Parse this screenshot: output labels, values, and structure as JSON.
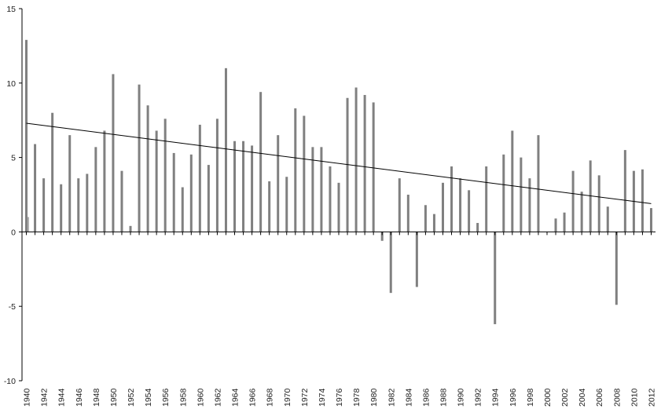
{
  "chart_data": {
    "type": "bar",
    "title": "",
    "xlabel": "",
    "ylabel": "",
    "ylim": [
      -10,
      15
    ],
    "y_ticks": [
      -10,
      -5,
      0,
      5,
      10,
      15
    ],
    "grid": false,
    "legend": "none",
    "bar_color": "#808080",
    "trend_color": "#000000",
    "x_tick_labels": [
      "1940",
      "1942",
      "1944",
      "1946",
      "1948",
      "1950",
      "1952",
      "1954",
      "1956",
      "1958",
      "1960",
      "1962",
      "1964",
      "1966",
      "1968",
      "1970",
      "1972",
      "1974",
      "1976",
      "1978",
      "1980",
      "1982",
      "1984",
      "1986",
      "1988",
      "1990",
      "1992",
      "1994",
      "1996",
      "1998",
      "2000",
      "2002",
      "2004",
      "2006",
      "2008",
      "2010",
      "2012"
    ],
    "years": [
      1940,
      1941,
      1942,
      1943,
      1944,
      1945,
      1946,
      1947,
      1948,
      1949,
      1950,
      1951,
      1952,
      1953,
      1954,
      1955,
      1956,
      1957,
      1958,
      1959,
      1960,
      1961,
      1962,
      1963,
      1964,
      1965,
      1966,
      1967,
      1968,
      1969,
      1970,
      1971,
      1972,
      1973,
      1974,
      1975,
      1976,
      1977,
      1978,
      1979,
      1980,
      1981,
      1982,
      1983,
      1984,
      1985,
      1986,
      1987,
      1988,
      1989,
      1990,
      1991,
      1992,
      1993,
      1994,
      1995,
      1996,
      1997,
      1998,
      1999,
      2000,
      2001,
      2002,
      2003,
      2004,
      2005,
      2006,
      2007,
      2008,
      2009,
      2010,
      2011,
      2012
    ],
    "values": [
      12.9,
      5.9,
      3.6,
      8.0,
      3.2,
      6.5,
      3.6,
      3.9,
      5.7,
      6.8,
      10.6,
      4.1,
      0.4,
      9.9,
      8.5,
      6.8,
      7.6,
      5.3,
      3.0,
      5.2,
      7.2,
      4.5,
      7.6,
      11.0,
      6.1,
      6.1,
      5.8,
      9.4,
      3.4,
      6.5,
      3.7,
      8.3,
      7.8,
      5.7,
      5.7,
      4.4,
      3.3,
      9.0,
      9.7,
      9.2,
      8.7,
      -0.6,
      -4.1,
      3.6,
      2.5,
      -3.7,
      1.8,
      1.2,
      3.3,
      4.4,
      3.6,
      2.8,
      0.6,
      4.4,
      -6.2,
      5.2,
      6.8,
      5.0,
      3.6,
      6.5,
      0.0,
      0.9,
      1.3,
      4.1,
      2.7,
      4.8,
      3.8,
      1.7,
      -4.9,
      5.5,
      4.1,
      4.2,
      1.6
    ],
    "extra_bar": {
      "year": 1940,
      "value": 1.0
    },
    "trend": {
      "x": [
        1940,
        2012
      ],
      "y": [
        7.3,
        1.9
      ]
    }
  }
}
